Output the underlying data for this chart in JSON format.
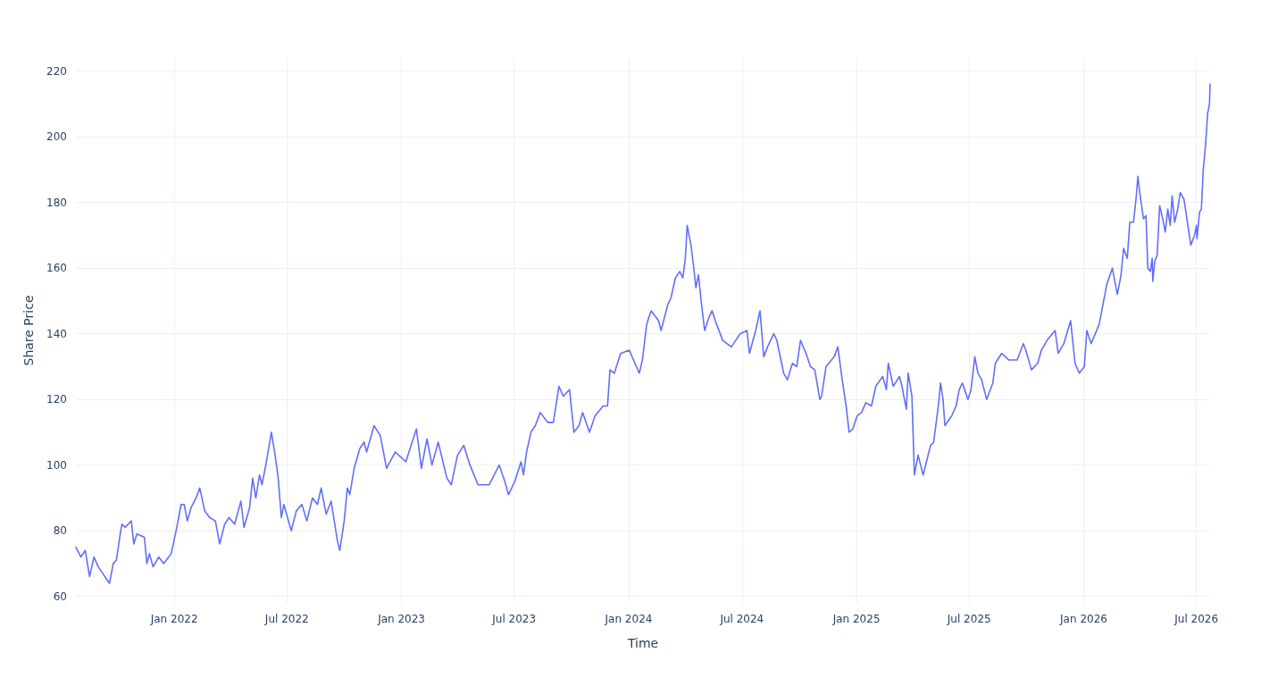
{
  "chart_data": {
    "type": "line",
    "xlabel": "Time",
    "ylabel": "Share Price",
    "grid": true,
    "marker": "none",
    "line_style": "solid",
    "xlim": [
      "2021-07-27",
      "2026-07-23"
    ],
    "ylim": [
      58,
      224
    ],
    "xticks": [
      {
        "value": "2022-01-01",
        "label": "Jan 2022"
      },
      {
        "value": "2022-07-01",
        "label": "Jul 2022"
      },
      {
        "value": "2023-01-01",
        "label": "Jan 2023"
      },
      {
        "value": "2023-07-01",
        "label": "Jul 2023"
      },
      {
        "value": "2024-01-01",
        "label": "Jan 2024"
      },
      {
        "value": "2024-07-01",
        "label": "Jul 2024"
      },
      {
        "value": "2025-01-01",
        "label": "Jan 2025"
      },
      {
        "value": "2025-07-01",
        "label": "Jul 2025"
      },
      {
        "value": "2026-01-01",
        "label": "Jan 2026"
      },
      {
        "value": "2026-07-01",
        "label": "Jul 2026"
      }
    ],
    "yticks": [
      60,
      80,
      100,
      120,
      140,
      160,
      180,
      200,
      220
    ],
    "series": [
      {
        "color": "#636efa",
        "x": [
          "2021-07-27",
          "2021-08-04",
          "2021-08-11",
          "2021-08-18",
          "2021-08-25",
          "2021-09-01",
          "2021-09-08",
          "2021-09-15",
          "2021-09-19",
          "2021-09-25",
          "2021-09-30",
          "2021-10-07",
          "2021-10-09",
          "2021-10-14",
          "2021-10-24",
          "2021-10-28",
          "2021-11-02",
          "2021-11-14",
          "2021-11-18",
          "2021-11-22",
          "2021-11-28",
          "2021-12-07",
          "2021-12-15",
          "2021-12-27",
          "2022-01-04",
          "2022-01-12",
          "2022-01-17",
          "2022-01-22",
          "2022-01-28",
          "2022-02-05",
          "2022-02-11",
          "2022-02-19",
          "2022-02-27",
          "2022-03-08",
          "2022-03-15",
          "2022-03-23",
          "2022-03-30",
          "2022-04-08",
          "2022-04-18",
          "2022-04-23",
          "2022-05-02",
          "2022-05-07",
          "2022-05-12",
          "2022-05-18",
          "2022-05-22",
          "2022-05-29",
          "2022-06-06",
          "2022-06-12",
          "2022-06-17",
          "2022-06-22",
          "2022-06-26",
          "2022-07-08",
          "2022-07-16",
          "2022-07-25",
          "2022-08-02",
          "2022-08-11",
          "2022-08-19",
          "2022-08-25",
          "2022-09-02",
          "2022-09-10",
          "2022-09-20",
          "2022-09-24",
          "2022-10-01",
          "2022-10-06",
          "2022-10-10",
          "2022-10-17",
          "2022-10-26",
          "2022-11-02",
          "2022-11-06",
          "2022-11-18",
          "2022-11-28",
          "2022-12-08",
          "2022-12-22",
          "2023-01-08",
          "2023-01-25",
          "2023-02-02",
          "2023-02-11",
          "2023-02-19",
          "2023-03-01",
          "2023-03-15",
          "2023-03-22",
          "2023-04-01",
          "2023-04-11",
          "2023-04-21",
          "2023-05-04",
          "2023-05-22",
          "2023-06-07",
          "2023-06-16",
          "2023-06-22",
          "2023-07-02",
          "2023-07-12",
          "2023-07-16",
          "2023-07-21",
          "2023-07-28",
          "2023-08-04",
          "2023-08-12",
          "2023-08-24",
          "2023-09-02",
          "2023-09-11",
          "2023-09-18",
          "2023-09-28",
          "2023-10-05",
          "2023-10-13",
          "2023-10-19",
          "2023-10-30",
          "2023-11-08",
          "2023-11-21",
          "2023-11-28",
          "2023-12-02",
          "2023-12-09",
          "2023-12-19",
          "2024-01-02",
          "2024-01-11",
          "2024-01-18",
          "2024-01-23",
          "2024-01-30",
          "2024-02-06",
          "2024-02-18",
          "2024-02-22",
          "2024-03-04",
          "2024-03-09",
          "2024-03-16",
          "2024-03-23",
          "2024-03-28",
          "2024-04-01",
          "2024-04-04",
          "2024-04-10",
          "2024-04-14",
          "2024-04-18",
          "2024-04-22",
          "2024-04-27",
          "2024-05-02",
          "2024-05-09",
          "2024-05-14",
          "2024-05-21",
          "2024-05-31",
          "2024-06-14",
          "2024-06-28",
          "2024-07-09",
          "2024-07-13",
          "2024-07-23",
          "2024-07-30",
          "2024-08-05",
          "2024-08-11",
          "2024-08-21",
          "2024-08-26",
          "2024-09-06",
          "2024-09-12",
          "2024-09-20",
          "2024-09-27",
          "2024-10-03",
          "2024-10-12",
          "2024-10-19",
          "2024-10-26",
          "2024-11-03",
          "2024-11-06",
          "2024-11-13",
          "2024-11-26",
          "2024-12-02",
          "2024-12-09",
          "2024-12-16",
          "2024-12-20",
          "2024-12-26",
          "2025-01-02",
          "2025-01-09",
          "2025-01-16",
          "2025-01-25",
          "2025-02-01",
          "2025-02-12",
          "2025-02-18",
          "2025-02-21",
          "2025-03-01",
          "2025-03-11",
          "2025-03-15",
          "2025-03-22",
          "2025-03-25",
          "2025-03-31",
          "2025-04-04",
          "2025-04-10",
          "2025-04-18",
          "2025-04-30",
          "2025-05-05",
          "2025-05-13",
          "2025-05-16",
          "2025-05-20",
          "2025-05-23",
          "2025-06-03",
          "2025-06-10",
          "2025-06-15",
          "2025-06-20",
          "2025-06-29",
          "2025-07-04",
          "2025-07-10",
          "2025-07-15",
          "2025-07-21",
          "2025-07-29",
          "2025-08-08",
          "2025-08-12",
          "2025-08-22",
          "2025-09-03",
          "2025-09-16",
          "2025-09-26",
          "2025-09-30",
          "2025-10-09",
          "2025-10-19",
          "2025-10-25",
          "2025-11-03",
          "2025-11-16",
          "2025-11-21",
          "2025-11-30",
          "2025-12-11",
          "2025-12-18",
          "2025-12-25",
          "2026-01-02",
          "2026-01-06",
          "2026-01-13",
          "2026-01-26",
          "2026-02-07",
          "2026-02-16",
          "2026-02-24",
          "2026-03-02",
          "2026-03-06",
          "2026-03-12",
          "2026-03-16",
          "2026-03-22",
          "2026-03-26",
          "2026-03-29",
          "2026-04-01",
          "2026-04-07",
          "2026-04-11",
          "2026-04-14",
          "2026-04-18",
          "2026-04-21",
          "2026-04-22",
          "2026-04-25",
          "2026-04-29",
          "2026-05-03",
          "2026-05-08",
          "2026-05-12",
          "2026-05-16",
          "2026-05-20",
          "2026-05-23",
          "2026-05-27",
          "2026-06-01",
          "2026-06-05",
          "2026-06-11",
          "2026-06-15",
          "2026-06-22",
          "2026-06-28",
          "2026-07-01",
          "2026-07-02",
          "2026-07-06",
          "2026-07-09",
          "2026-07-12",
          "2026-07-15",
          "2026-07-17",
          "2026-07-19",
          "2026-07-22",
          "2026-07-23"
        ],
        "values": [
          75,
          72,
          74,
          66,
          72,
          69,
          67,
          65,
          64,
          70,
          71,
          80,
          82,
          81,
          83,
          76,
          79,
          78,
          70,
          73,
          69,
          72,
          70,
          73,
          80,
          88,
          88,
          83,
          87,
          90,
          93,
          86,
          84,
          83,
          76,
          82,
          84,
          82,
          89,
          81,
          87,
          96,
          90,
          97,
          94,
          101,
          110,
          103,
          96,
          84,
          88,
          80,
          86,
          88,
          83,
          90,
          88,
          93,
          85,
          89,
          77,
          74,
          83,
          93,
          91,
          99,
          105,
          107,
          104,
          112,
          109,
          99,
          104,
          101,
          111,
          99,
          108,
          100,
          107,
          96,
          94,
          103,
          106,
          100,
          94,
          94,
          100,
          95,
          91,
          95,
          101,
          97,
          104,
          110,
          112,
          116,
          113,
          113,
          124,
          121,
          123,
          110,
          112,
          116,
          110,
          115,
          118,
          118,
          129,
          128,
          134,
          135,
          131,
          128,
          132,
          143,
          147,
          144,
          141,
          149,
          151,
          157,
          159,
          157,
          163,
          173,
          167,
          161,
          154,
          158,
          149,
          141,
          145,
          147,
          143,
          138,
          136,
          140,
          141,
          134,
          141,
          147,
          133,
          136,
          140,
          138,
          128,
          126,
          131,
          130,
          138,
          134,
          130,
          129,
          120,
          121,
          130,
          133,
          136,
          126,
          117,
          110,
          111,
          115,
          116,
          119,
          118,
          124,
          127,
          123,
          131,
          124,
          127,
          124,
          117,
          128,
          121,
          97,
          103,
          97,
          106,
          107,
          119,
          125,
          120,
          112,
          115,
          118,
          123,
          125,
          120,
          123,
          133,
          128,
          126,
          120,
          125,
          131,
          134,
          132,
          132,
          137,
          135,
          129,
          131,
          135,
          138,
          141,
          134,
          137,
          144,
          131,
          128,
          130,
          141,
          137,
          143,
          155,
          160,
          152,
          158,
          166,
          163,
          174,
          174,
          181,
          188,
          183,
          175,
          176,
          160,
          159,
          163,
          156,
          162,
          164,
          179,
          175,
          171,
          178,
          173,
          182,
          174,
          178,
          183,
          181,
          176,
          167,
          170,
          173,
          169,
          177,
          178,
          190,
          196,
          201,
          207,
          210,
          216
        ]
      }
    ]
  }
}
